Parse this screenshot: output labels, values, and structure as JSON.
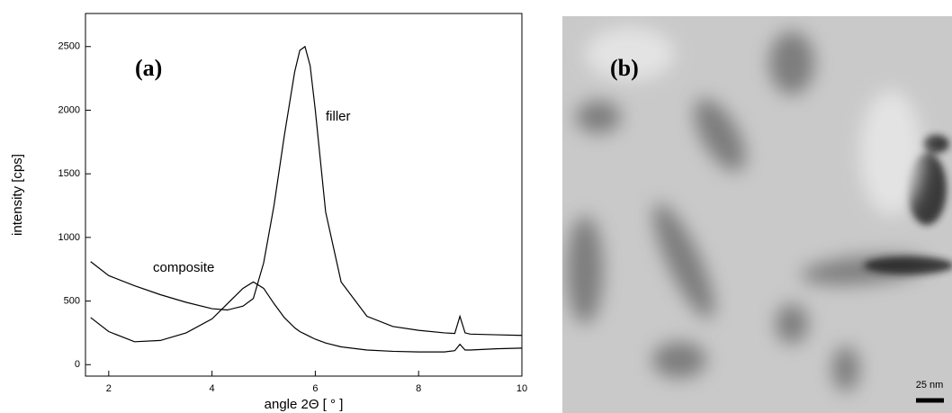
{
  "chart_data": {
    "type": "line",
    "panel_label": "(a)",
    "x_label": "angle 2Θ [ ° ]",
    "y_label": "intensity [cps]",
    "x": [
      1.65,
      2,
      2.5,
      3,
      3.5,
      4,
      4.3,
      4.6,
      4.8,
      5,
      5.2,
      5.4,
      5.6,
      5.7,
      5.8,
      5.9,
      6,
      6.2,
      6.5,
      7,
      7.5,
      8,
      8.5,
      8.7,
      8.8,
      8.9,
      9,
      9.5,
      10
    ],
    "series": [
      {
        "name": "filler",
        "color": "#000000",
        "values": [
          810,
          700,
          620,
          550,
          490,
          440,
          430,
          460,
          520,
          800,
          1250,
          1800,
          2300,
          2470,
          2500,
          2350,
          2000,
          1200,
          650,
          380,
          300,
          270,
          250,
          245,
          380,
          250,
          240,
          235,
          230
        ]
      },
      {
        "name": "composite",
        "color": "#000000",
        "values": [
          370,
          260,
          180,
          190,
          250,
          360,
          480,
          600,
          650,
          600,
          480,
          370,
          290,
          260,
          240,
          220,
          200,
          170,
          140,
          115,
          105,
          100,
          100,
          110,
          160,
          115,
          115,
          125,
          130
        ]
      }
    ],
    "xlim": [
      1.55,
      10
    ],
    "xticks": [
      2,
      4,
      6,
      8,
      10
    ],
    "ylim": [
      -90,
      2760
    ],
    "yticks": [
      0,
      500,
      1000,
      1500,
      2000,
      2500
    ],
    "grid": false
  },
  "image": {
    "panel_label": "(b)",
    "scale_bar": "25 nm"
  }
}
